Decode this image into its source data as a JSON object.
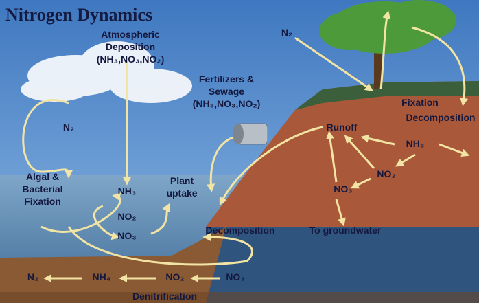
{
  "title": "Nitrogen Dynamics",
  "labels": [
    {
      "lines": [
        "Atmospheric",
        "Deposition",
        "(NH₃,NO₃,NO₂)"
      ]
    },
    {
      "lines": [
        "Fertilizers &",
        "Sewage",
        "(NH₃,NO₃,NO₂)"
      ]
    },
    {
      "lines": [
        "N₂"
      ]
    },
    {
      "lines": [
        "N₂"
      ]
    },
    {
      "lines": [
        "Algal &",
        "Bacterial",
        "Fixation"
      ]
    },
    {
      "lines": [
        "NH₃"
      ]
    },
    {
      "lines": [
        "NO₂"
      ]
    },
    {
      "lines": [
        "NO₃"
      ]
    },
    {
      "lines": [
        "Plant",
        "uptake"
      ]
    },
    {
      "lines": [
        "Decomposition"
      ]
    },
    {
      "lines": [
        "Runoff"
      ]
    },
    {
      "lines": [
        "Fixation"
      ]
    },
    {
      "lines": [
        "Decomposition"
      ]
    },
    {
      "lines": [
        "NH₃"
      ]
    },
    {
      "lines": [
        "NO₂"
      ]
    },
    {
      "lines": [
        "NO₃"
      ]
    },
    {
      "lines": [
        "To groundwater"
      ]
    },
    {
      "lines": [
        "N₂"
      ]
    },
    {
      "lines": [
        "NH₄"
      ]
    },
    {
      "lines": [
        "NO₂"
      ]
    },
    {
      "lines": [
        "NO₃"
      ]
    },
    {
      "lines": [
        "Denitrification"
      ]
    }
  ]
}
